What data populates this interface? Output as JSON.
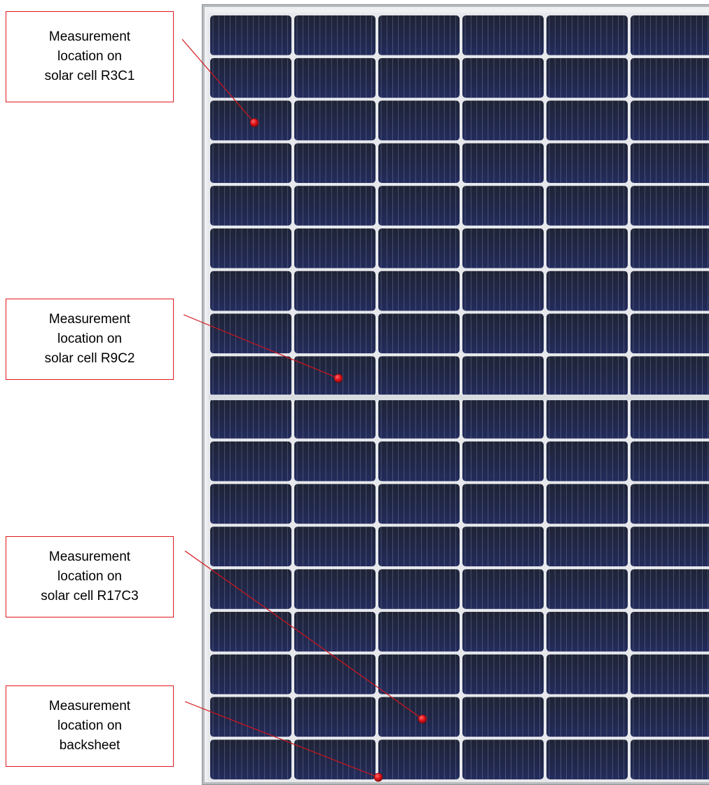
{
  "colors": {
    "frame": "#b9bcbf",
    "cell_top": "#1f2436",
    "cell_bottom": "#222a58",
    "grid_line": "#e6e8ec",
    "finger": "#9aa0b5",
    "callout_border": "#e0191e",
    "leader": "#d4141a",
    "marker": "#d0121a"
  },
  "panel": {
    "rows": 18,
    "columns": 6
  },
  "callouts": [
    {
      "line1": "Measurement",
      "line2": "location on",
      "line3": "solar cell R3C1",
      "marker_cell": [
        3,
        1
      ]
    },
    {
      "line1": "Measurement",
      "line2": "location on",
      "line3": "solar cell R9C2",
      "marker_cell": [
        9,
        2
      ]
    },
    {
      "line1": "Measurement",
      "line2": "location on",
      "line3": "solar cell R17C3",
      "marker_cell": [
        17,
        3
      ]
    },
    {
      "line1": "Measurement",
      "line2": "location on",
      "line3": "backsheet"
    }
  ]
}
